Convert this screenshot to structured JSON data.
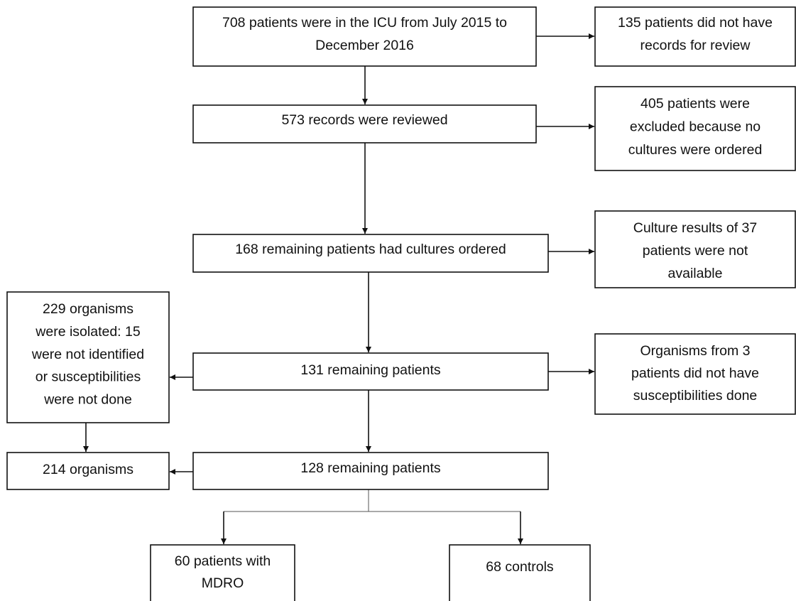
{
  "nodes": [
    {
      "lines": [
        "708 patients were in the ICU from July 2015 to",
        "December 2016"
      ]
    },
    {
      "lines": [
        "135 patients did not have",
        "records for review"
      ]
    },
    {
      "lines": [
        "573 records were reviewed"
      ]
    },
    {
      "lines": [
        "405 patients were",
        "excluded because no",
        "cultures were ordered"
      ]
    },
    {
      "lines": [
        "168 remaining patients had cultures ordered"
      ]
    },
    {
      "lines": [
        "Culture results of 37",
        "patients were not",
        "available"
      ]
    },
    {
      "lines": [
        "229 organisms",
        "were isolated: 15",
        "were not identified",
        "or susceptibilities",
        "were not done"
      ]
    },
    {
      "lines": [
        "131 remaining patients"
      ]
    },
    {
      "lines": [
        "Organisms from 3",
        "patients did not have",
        "susceptibilities done"
      ]
    },
    {
      "lines": [
        "214 organisms"
      ]
    },
    {
      "lines": [
        "128 remaining patients"
      ]
    },
    {
      "lines": [
        "60 patients with",
        "MDRO"
      ]
    },
    {
      "lines": [
        "68 controls"
      ]
    }
  ]
}
